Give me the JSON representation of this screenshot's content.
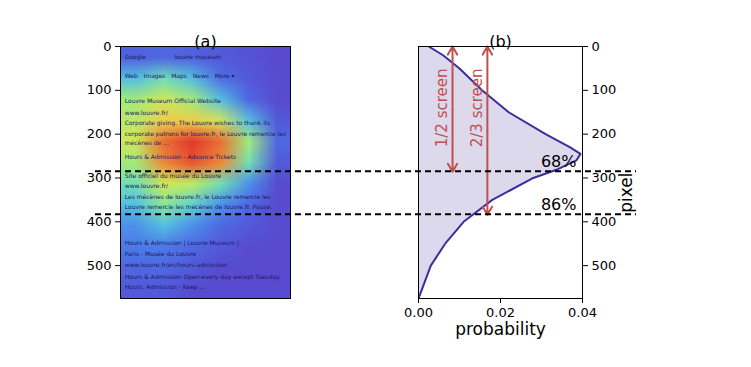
{
  "chart_data": [
    {
      "type": "heatmap",
      "title": "(a)",
      "ylim": [
        0,
        575
      ],
      "yticks": [
        0,
        100,
        200,
        300,
        400,
        500
      ],
      "tick_labels": "y",
      "cells": [
        [
          0.08,
          0.1,
          0.08,
          0.05,
          0.03,
          0.0
        ],
        [
          0.3,
          0.4,
          0.3,
          0.12,
          0.05,
          0.0
        ],
        [
          0.5,
          0.6,
          0.5,
          0.3,
          0.1,
          0.0
        ],
        [
          0.55,
          0.7,
          0.7,
          0.6,
          0.3,
          0.05
        ],
        [
          0.6,
          0.9,
          1.0,
          0.9,
          0.5,
          0.1
        ],
        [
          0.5,
          0.85,
          0.95,
          0.85,
          0.4,
          0.05
        ],
        [
          0.4,
          0.6,
          0.55,
          0.4,
          0.2,
          0.0
        ],
        [
          0.3,
          0.45,
          0.35,
          0.2,
          0.1,
          0.0
        ],
        [
          0.2,
          0.3,
          0.2,
          0.1,
          0.05,
          0.0
        ],
        [
          0.15,
          0.15,
          0.1,
          0.05,
          0.0,
          0.0
        ],
        [
          0.1,
          0.1,
          0.05,
          0.0,
          0.0,
          0.0
        ],
        [
          0.05,
          0.05,
          0.0,
          0.0,
          0.0,
          0.0
        ]
      ],
      "screenshot_text": [
        {
          "text": "Google",
          "x": 0.15,
          "y": 25
        },
        {
          "text": "louvre museum",
          "x": 1.9,
          "y": 25
        },
        {
          "text": "Web   Images   Maps   News   More ▾",
          "x": 0.15,
          "y": 68
        },
        {
          "text": "Louvre Museum Official Website",
          "x": 0.15,
          "y": 125
        },
        {
          "text": "www.louvre.fr/",
          "x": 0.15,
          "y": 152
        },
        {
          "text": "Corporate giving. The Louvre wishes to thank its",
          "x": 0.15,
          "y": 175
        },
        {
          "text": "corporate patrons for louvre.fr, le Louvre remercie les",
          "x": 0.15,
          "y": 200
        },
        {
          "text": "mécènes de ...",
          "x": 0.15,
          "y": 220
        },
        {
          "text": "Hours & Admission - Advance Tickets",
          "x": 0.15,
          "y": 252
        },
        {
          "text": "Site officiel du musée du Louvre",
          "x": 0.15,
          "y": 295
        },
        {
          "text": "www.louvre.fr/",
          "x": 0.15,
          "y": 318
        },
        {
          "text": "Les mécènes de louvre.fr, le Louvre remercie les",
          "x": 0.15,
          "y": 343
        },
        {
          "text": "Louvre remercie les mécènes de louvre.fr. Pause.",
          "x": 0.15,
          "y": 366
        },
        {
          "text": "Hours & Admission | Louvre Museum |",
          "x": 0.15,
          "y": 448
        },
        {
          "text": "Paris - Musée du Louvre",
          "x": 0.15,
          "y": 473
        },
        {
          "text": "www.louvre.fr/en/hours-admission",
          "x": 0.15,
          "y": 498
        },
        {
          "text": "Hours & Admission Open every day except Tuesday.",
          "x": 0.15,
          "y": 525
        },
        {
          "text": "Hours, Admission - Keep ...",
          "x": 0.15,
          "y": 550
        }
      ]
    },
    {
      "type": "area",
      "title": "(b)",
      "x_label": "probability",
      "y_label": "pixel",
      "xlim": [
        0,
        0.04
      ],
      "xticks": [
        {
          "value": 0,
          "label": "0.00"
        },
        {
          "value": 0.02,
          "label": "0.02"
        },
        {
          "value": 0.04,
          "label": "0.04"
        }
      ],
      "ylim": [
        0,
        575
      ],
      "yticks": [
        0,
        100,
        200,
        300,
        400,
        500
      ],
      "color": "#3c2d9c",
      "y": [
        0,
        20,
        50,
        100,
        150,
        200,
        230,
        245,
        260,
        280,
        300,
        350,
        400,
        450,
        500,
        550,
        575
      ],
      "values": [
        0.0025,
        0.006,
        0.01,
        0.0155,
        0.022,
        0.031,
        0.037,
        0.0395,
        0.0385,
        0.034,
        0.028,
        0.018,
        0.011,
        0.0065,
        0.003,
        0.001,
        0.0
      ],
      "hlines": [
        {
          "y": 286,
          "label": "68%"
        },
        {
          "y": 384,
          "label": "86%"
        }
      ],
      "arrows": [
        {
          "x": 0.0083,
          "y1": 0,
          "y2": 286,
          "label": "1/2 screen"
        },
        {
          "x": 0.0168,
          "y1": 0,
          "y2": 384,
          "label": "2/3 screen"
        }
      ]
    }
  ]
}
